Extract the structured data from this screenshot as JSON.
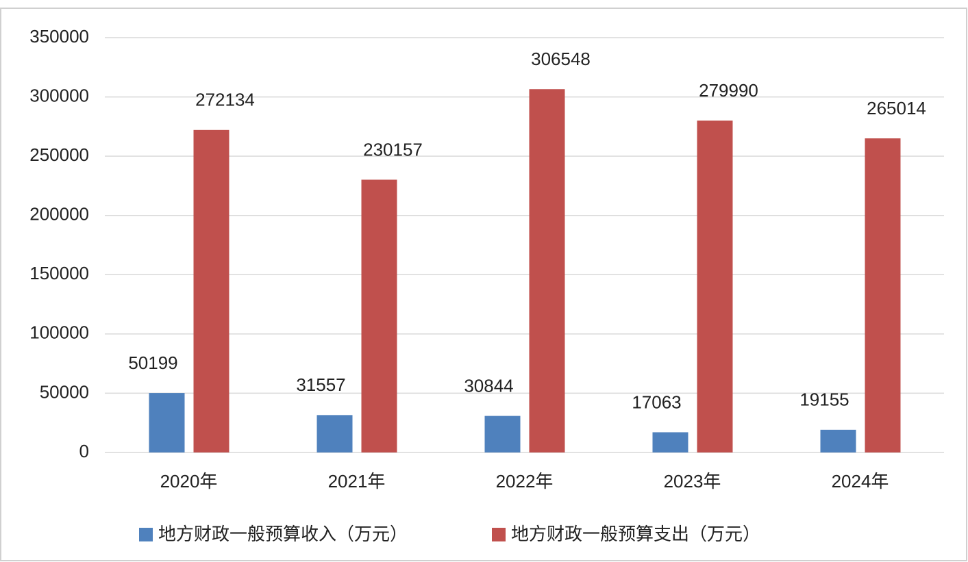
{
  "chart_data": {
    "type": "bar",
    "categories": [
      "2020年",
      "2021年",
      "2022年",
      "2023年",
      "2024年"
    ],
    "series": [
      {
        "name": "地方财政一般预算收入（万元）",
        "color": "#4f81bd",
        "values": [
          50199,
          31557,
          30844,
          17063,
          19155
        ]
      },
      {
        "name": "地方财政一般预算支出（万元）",
        "color": "#c0504d",
        "values": [
          272134,
          230157,
          306548,
          279990,
          265014
        ]
      }
    ],
    "ylim": [
      0,
      350000
    ],
    "yticks": [
      0,
      50000,
      100000,
      150000,
      200000,
      250000,
      300000,
      350000
    ],
    "grid": true,
    "legend": "bottom"
  }
}
